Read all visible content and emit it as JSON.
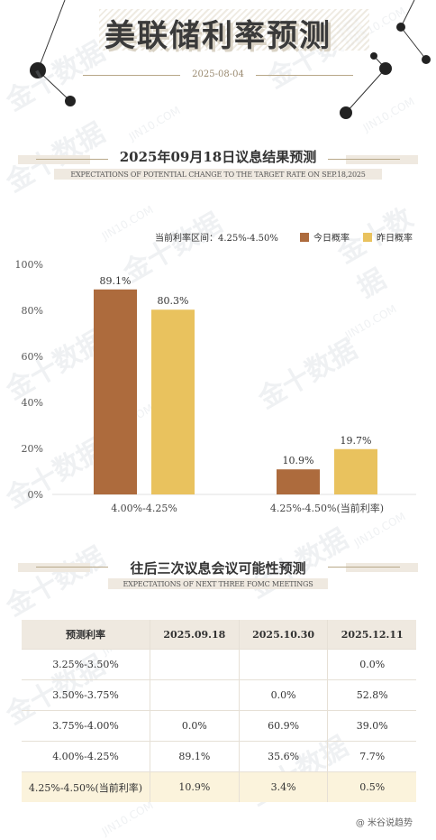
{
  "header": {
    "title": "美联储利率预测",
    "date": "2025-08-04"
  },
  "section1": {
    "title": "2025年09月18日议息结果预测",
    "subtitle": "EXPECTATIONS OF POTENTIAL CHANGE TO THE TARGET RATE ON SEP.18,2025"
  },
  "section2": {
    "title": "往后三次议息会议可能性预测",
    "subtitle": "EXPECTATIONS OF NEXT THREE FOMC MEETINGS"
  },
  "chart_data": {
    "type": "bar",
    "title": "",
    "note": "当前利率区间：4.25%-4.50%",
    "categories": [
      "4.00%-4.25%",
      "4.25%-4.50%(当前利率)"
    ],
    "series": [
      {
        "name": "今日概率",
        "color": "#ad6b3d",
        "values": [
          89.1,
          10.9
        ]
      },
      {
        "name": "昨日概率",
        "color": "#e9c25e",
        "values": [
          80.3,
          19.7
        ]
      }
    ],
    "y_ticks": [
      "0%",
      "20%",
      "40%",
      "60%",
      "80%",
      "100%"
    ],
    "ylim": [
      0,
      100
    ],
    "legend": "top-right",
    "grid": false
  },
  "table": {
    "headers": [
      "预测利率",
      "2025.09.18",
      "2025.10.30",
      "2025.12.11"
    ],
    "rows": [
      [
        "3.25%-3.50%",
        "",
        "",
        "0.0%"
      ],
      [
        "3.50%-3.75%",
        "",
        "0.0%",
        "52.8%"
      ],
      [
        "3.75%-4.00%",
        "0.0%",
        "60.9%",
        "39.0%"
      ],
      [
        "4.00%-4.25%",
        "89.1%",
        "35.6%",
        "7.7%"
      ],
      [
        "4.25%-4.50%(当前利率)",
        "10.9%",
        "3.4%",
        "0.5%"
      ]
    ]
  },
  "watermark": {
    "cn": "金十数据",
    "en": "JIN10.COM"
  },
  "credit": "@ 米谷说趋势",
  "colors": {
    "accent_line": "#b8a889",
    "today": "#ad6b3d",
    "yesterday": "#e9c25e",
    "highlight_row": "#fbf3dc"
  }
}
